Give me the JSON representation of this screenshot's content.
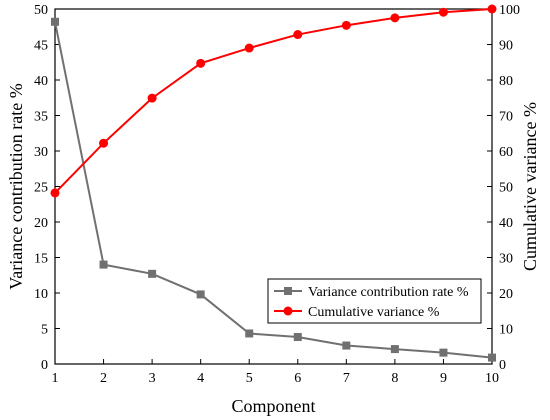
{
  "chart_data": {
    "type": "line",
    "xlabel": "Component",
    "ylabel_left": "Variance contribution rate %",
    "ylabel_right": "Cumulative variance %",
    "x": [
      1,
      2,
      3,
      4,
      5,
      6,
      7,
      8,
      9,
      10
    ],
    "x_ticks": [
      "1",
      "2",
      "3",
      "4",
      "5",
      "6",
      "7",
      "8",
      "9",
      "10"
    ],
    "xlim": [
      1,
      10
    ],
    "ylim_left": [
      0,
      50
    ],
    "ylim_right": [
      0,
      100
    ],
    "y_ticks_left": [
      "0",
      "5",
      "10",
      "15",
      "20",
      "25",
      "30",
      "35",
      "40",
      "45",
      "50"
    ],
    "y_ticks_right": [
      "0",
      "10",
      "20",
      "30",
      "40",
      "50",
      "60",
      "70",
      "80",
      "90",
      "100"
    ],
    "grid": false,
    "legend_position": "lower-right",
    "series": [
      {
        "name": "Variance contribution rate %",
        "axis": "left",
        "marker": "square",
        "color": "#707070",
        "values": [
          48.2,
          14.0,
          12.7,
          9.8,
          4.3,
          3.8,
          2.6,
          2.1,
          1.6,
          0.9
        ]
      },
      {
        "name": "Cumulative variance %",
        "axis": "right",
        "marker": "circle",
        "color": "#ff0000",
        "values": [
          48.2,
          62.2,
          74.9,
          84.7,
          89.0,
          92.8,
          95.4,
          97.5,
          99.1,
          100.0
        ]
      }
    ]
  }
}
